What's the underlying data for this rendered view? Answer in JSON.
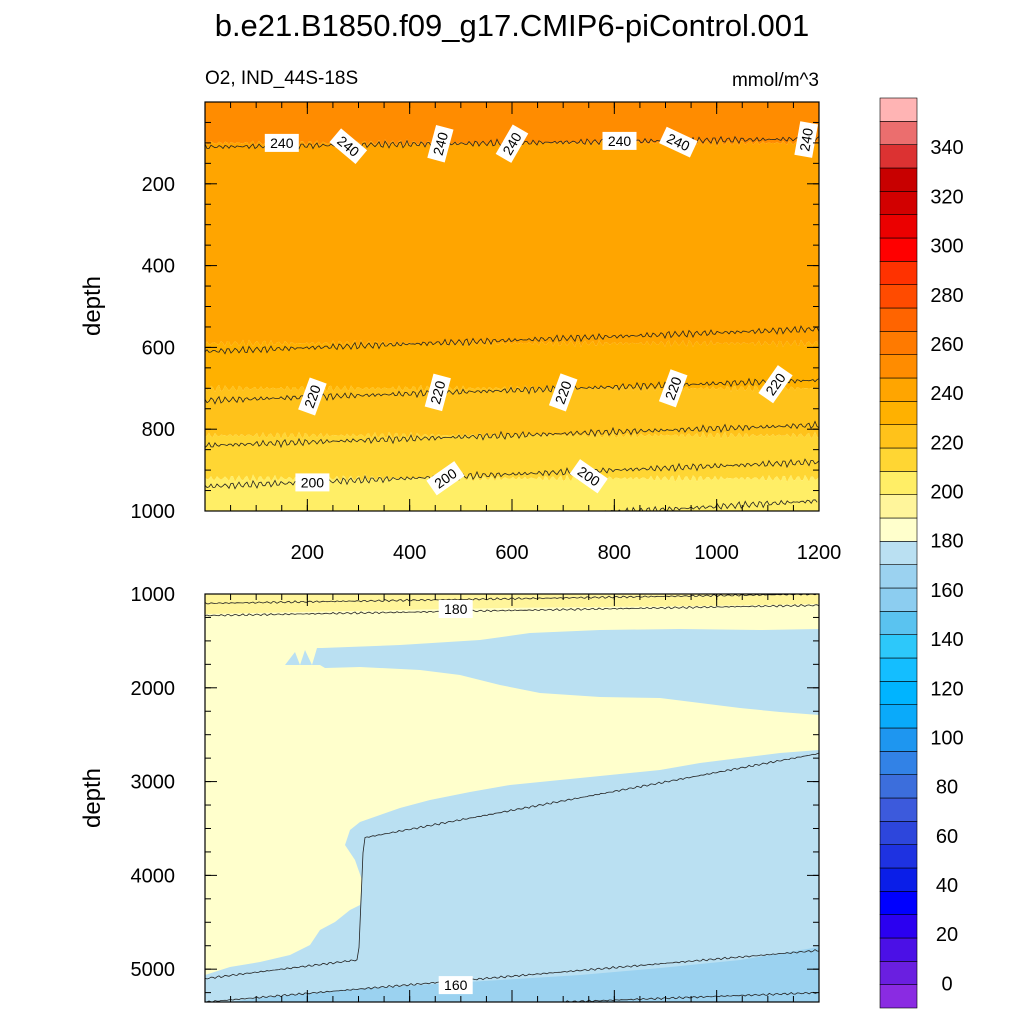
{
  "chart_data": {
    "type": "heatmap",
    "title": "b.e21.B1850.f09_g17.CMIP6-piControl.001",
    "variable_label": "O2, IND_44S-18S",
    "units_label": "mmol/m^3",
    "x_axis": {
      "range": [
        0,
        1200
      ],
      "tick_labels": [
        "200",
        "400",
        "600",
        "800",
        "1000",
        "1200"
      ],
      "tick_values": [
        200,
        400,
        600,
        800,
        1000,
        1200
      ]
    },
    "panels": [
      {
        "name": "upper",
        "ylabel": "depth",
        "y_range": [
          0,
          1000
        ],
        "y_tick_labels": [
          "200",
          "400",
          "600",
          "800",
          "1000"
        ],
        "y_tick_values": [
          200,
          400,
          600,
          800,
          1000
        ],
        "fill_bands": [
          {
            "top_depth": 0,
            "bottom_depth": 100,
            "value_range": [
              240,
              250
            ],
            "color": "#FF8C00"
          },
          {
            "top_depth": 100,
            "bottom_depth": 590,
            "value_range": [
              230,
              240
            ],
            "color": "#FFA500"
          },
          {
            "top_depth": 590,
            "bottom_depth": 700,
            "value_range": [
              220,
              230
            ],
            "color": "#FFB100"
          },
          {
            "top_depth": 700,
            "bottom_depth": 815,
            "value_range": [
              210,
              220
            ],
            "color": "#FFC21A"
          },
          {
            "top_depth": 815,
            "bottom_depth": 920,
            "value_range": [
              200,
              210
            ],
            "color": "#FFD633"
          },
          {
            "top_depth": 920,
            "bottom_depth": 1000,
            "value_range": [
              190,
              200
            ],
            "color": "#FFEE66"
          }
        ],
        "contour_lines": [
          {
            "level": 240,
            "depths_at_x": [
              [
                0,
                110
              ],
              [
                1200,
                90
              ]
            ]
          },
          {
            "level": 230,
            "depths_at_x": [
              [
                0,
                610
              ],
              [
                1200,
                555
              ]
            ]
          },
          {
            "level": 220,
            "depths_at_x": [
              [
                0,
                730
              ],
              [
                1200,
                680
              ]
            ]
          },
          {
            "level": 210,
            "depths_at_x": [
              [
                0,
                840
              ],
              [
                1200,
                790
              ]
            ]
          },
          {
            "level": 200,
            "depths_at_x": [
              [
                0,
                940
              ],
              [
                1200,
                880
              ]
            ]
          },
          {
            "level": 190,
            "depths_at_x": [
              [
                700,
                1010
              ],
              [
                1200,
                975
              ]
            ]
          }
        ],
        "contour_labels": [
          {
            "text": "240",
            "x": 150,
            "depth": 100
          },
          {
            "text": "240",
            "x": 280,
            "depth": 108
          },
          {
            "text": "240",
            "x": 460,
            "depth": 102
          },
          {
            "text": "240",
            "x": 600,
            "depth": 102
          },
          {
            "text": "240",
            "x": 810,
            "depth": 95
          },
          {
            "text": "240",
            "x": 925,
            "depth": 98
          },
          {
            "text": "240",
            "x": 1175,
            "depth": 92
          },
          {
            "text": "220",
            "x": 210,
            "depth": 720
          },
          {
            "text": "220",
            "x": 455,
            "depth": 710
          },
          {
            "text": "220",
            "x": 700,
            "depth": 710
          },
          {
            "text": "220",
            "x": 915,
            "depth": 700
          },
          {
            "text": "220",
            "x": 1115,
            "depth": 690
          },
          {
            "text": "200",
            "x": 210,
            "depth": 930
          },
          {
            "text": "200",
            "x": 470,
            "depth": 920
          },
          {
            "text": "200",
            "x": 750,
            "depth": 915
          }
        ]
      },
      {
        "name": "lower",
        "ylabel": "depth",
        "y_range": [
          1000,
          5350
        ],
        "y_tick_labels": [
          "1000",
          "2000",
          "3000",
          "4000",
          "5000"
        ],
        "y_tick_values": [
          1000,
          2000,
          3000,
          4000,
          5000
        ],
        "contour_lines": [
          {
            "level": 190,
            "depths_at_x": [
              [
                0,
                1100
              ],
              [
                1200,
                1000
              ]
            ]
          },
          {
            "level": 180,
            "depths_at_x": [
              [
                0,
                1230
              ],
              [
                1200,
                1120
              ]
            ]
          },
          {
            "level": 170,
            "depths_at_x": [
              [
                0,
                5100
              ],
              [
                300,
                4900
              ],
              [
                310,
                3600
              ],
              [
                1200,
                2700
              ]
            ]
          },
          {
            "level": 160,
            "depths_at_x": [
              [
                0,
                5350
              ],
              [
                1200,
                4800
              ]
            ]
          },
          {
            "level": 150,
            "depths_at_x": [
              [
                700,
                5350
              ],
              [
                1200,
                5250
              ]
            ]
          }
        ],
        "contour_labels": [
          {
            "text": "180",
            "x": 490,
            "depth": 1160
          },
          {
            "text": "160",
            "x": 490,
            "depth": 5170
          }
        ]
      }
    ],
    "colorbar": {
      "tick_labels": [
        "0",
        "20",
        "40",
        "60",
        "80",
        "100",
        "120",
        "140",
        "160",
        "180",
        "200",
        "220",
        "240",
        "260",
        "280",
        "300",
        "320",
        "340"
      ],
      "tick_values": [
        0,
        20,
        40,
        60,
        80,
        100,
        120,
        140,
        160,
        180,
        200,
        220,
        240,
        260,
        280,
        300,
        320,
        340
      ],
      "step": 10,
      "min": -10,
      "max": 360,
      "colors": [
        "#8A2BE2",
        "#6A1FE0",
        "#4B10E6",
        "#2B00F0",
        "#0000FF",
        "#0A1EE8",
        "#1E32E1",
        "#2D46DC",
        "#3C5ADC",
        "#3C6EDC",
        "#3282E6",
        "#1E96F0",
        "#0AAAFA",
        "#00B4FF",
        "#14BEFF",
        "#2DC8FA",
        "#5AC3F0",
        "#8CCDF0",
        "#9BD2F0",
        "#BAE0F2",
        "#FFFFCC",
        "#FFF59B",
        "#FFEE66",
        "#FFD633",
        "#FFC21A",
        "#FFB100",
        "#FFA500",
        "#FF8C00",
        "#FF7A00",
        "#FF6400",
        "#FF4B00",
        "#FF3200",
        "#FF0000",
        "#EB0000",
        "#D20000",
        "#C80000",
        "#DC3232",
        "#EB6E6E",
        "#FFB4B4"
      ]
    }
  }
}
